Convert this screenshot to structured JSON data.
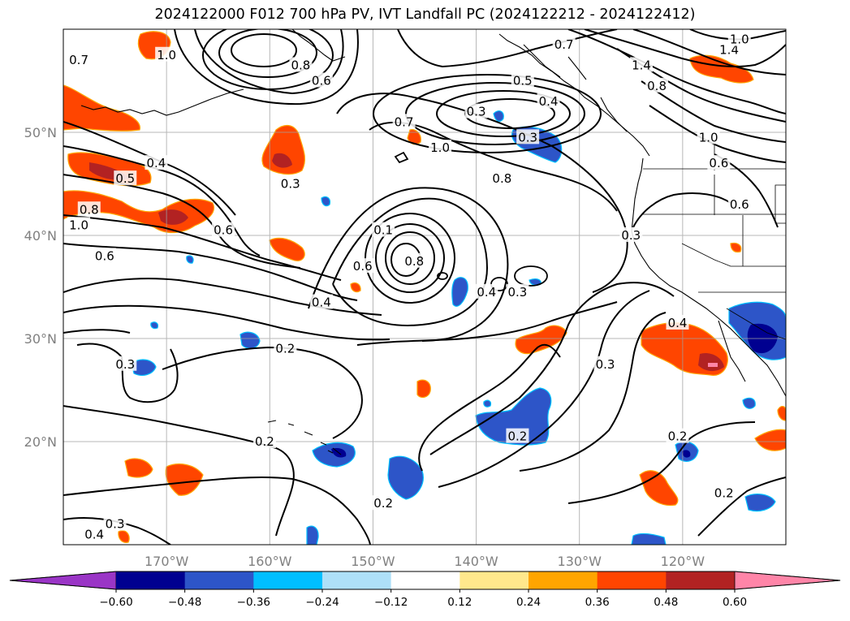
{
  "title": "2024122000 F012 700 hPa PV, IVT Landfall PC (2024122212 - 2024122412)",
  "map": {
    "lon_range": [
      -180,
      -110
    ],
    "lat_range": [
      10,
      60
    ],
    "lat_ticks": [
      {
        "value": 20,
        "label": "20°N"
      },
      {
        "value": 30,
        "label": "30°N"
      },
      {
        "value": 40,
        "label": "40°N"
      },
      {
        "value": 50,
        "label": "50°N"
      }
    ],
    "lon_ticks": [
      {
        "value": -170,
        "label": "170°W"
      },
      {
        "value": -160,
        "label": "160°W"
      },
      {
        "value": -150,
        "label": "150°W"
      },
      {
        "value": -140,
        "label": "140°W"
      },
      {
        "value": -130,
        "label": "130°W"
      },
      {
        "value": -120,
        "label": "120°W"
      }
    ],
    "gridlines": true,
    "contour_field": "700 hPa PV",
    "shaded_field": "IVT Landfall PC",
    "contour_labels": [
      {
        "text": "0.7",
        "lon": -178.5,
        "lat": 57.0
      },
      {
        "text": "1.0",
        "lon": -170.0,
        "lat": 57.5
      },
      {
        "text": "0.8",
        "lon": -157.0,
        "lat": 56.5
      },
      {
        "text": "0.6",
        "lon": -155.0,
        "lat": 55.0
      },
      {
        "text": "0.4",
        "lon": -171.0,
        "lat": 47.0
      },
      {
        "text": "0.5",
        "lon": -174.0,
        "lat": 45.5
      },
      {
        "text": "0.8",
        "lon": -177.5,
        "lat": 42.5
      },
      {
        "text": "1.0",
        "lon": -178.5,
        "lat": 41.0
      },
      {
        "text": "0.6",
        "lon": -164.5,
        "lat": 40.5
      },
      {
        "text": "0.3",
        "lon": -158.0,
        "lat": 45.0
      },
      {
        "text": "0.6",
        "lon": -176.0,
        "lat": 38.0
      },
      {
        "text": "0.5",
        "lon": -135.5,
        "lat": 55.0
      },
      {
        "text": "0.3",
        "lon": -140.0,
        "lat": 52.0
      },
      {
        "text": "0.7",
        "lon": -147.0,
        "lat": 51.0
      },
      {
        "text": "1.0",
        "lon": -143.5,
        "lat": 48.5
      },
      {
        "text": "0.8",
        "lon": -137.5,
        "lat": 45.5
      },
      {
        "text": "0.4",
        "lon": -133.0,
        "lat": 53.0
      },
      {
        "text": "0.3",
        "lon": -135.0,
        "lat": 49.5
      },
      {
        "text": "0.7",
        "lon": -131.5,
        "lat": 58.5
      },
      {
        "text": "1.4",
        "lon": -124.0,
        "lat": 56.5
      },
      {
        "text": "0.8",
        "lon": -122.5,
        "lat": 54.5
      },
      {
        "text": "1.0",
        "lon": -117.5,
        "lat": 49.5
      },
      {
        "text": "1.4",
        "lon": -115.5,
        "lat": 58.0
      },
      {
        "text": "1.0",
        "lon": -114.5,
        "lat": 59.0
      },
      {
        "text": "0.6",
        "lon": -116.5,
        "lat": 47.0
      },
      {
        "text": "0.6",
        "lon": -114.5,
        "lat": 43.0
      },
      {
        "text": "0.3",
        "lon": -125.0,
        "lat": 40.0
      },
      {
        "text": "0.1",
        "lon": -149.0,
        "lat": 40.5
      },
      {
        "text": "0.6",
        "lon": -151.0,
        "lat": 37.0
      },
      {
        "text": "0.8",
        "lon": -146.0,
        "lat": 37.5
      },
      {
        "text": "0.4",
        "lon": -139.0,
        "lat": 34.5
      },
      {
        "text": "0.3",
        "lon": -136.0,
        "lat": 34.5
      },
      {
        "text": "0.4",
        "lon": -155.0,
        "lat": 33.5
      },
      {
        "text": "0.2",
        "lon": -158.5,
        "lat": 29.0
      },
      {
        "text": "0.3",
        "lon": -174.0,
        "lat": 27.5
      },
      {
        "text": "0.4",
        "lon": -120.5,
        "lat": 31.5
      },
      {
        "text": "0.3",
        "lon": -127.5,
        "lat": 27.5
      },
      {
        "text": "0.2",
        "lon": -136.0,
        "lat": 20.5
      },
      {
        "text": "0.2",
        "lon": -160.5,
        "lat": 20.0
      },
      {
        "text": "0.2",
        "lon": -149.0,
        "lat": 14.0
      },
      {
        "text": "0.2",
        "lon": -120.5,
        "lat": 20.5
      },
      {
        "text": "0.2",
        "lon": -116.0,
        "lat": 15.0
      },
      {
        "text": "0.3",
        "lon": -175.0,
        "lat": 12.0
      },
      {
        "text": "0.4",
        "lon": -177.0,
        "lat": 11.0
      }
    ]
  },
  "colorbar": {
    "levels": [
      -0.72,
      -0.6,
      -0.48,
      -0.36,
      -0.24,
      -0.12,
      0.12,
      0.24,
      0.36,
      0.48,
      0.6,
      0.72
    ],
    "tick_labels": [
      "−0.60",
      "−0.48",
      "−0.36",
      "−0.24",
      "−0.12",
      "0.12",
      "0.24",
      "0.36",
      "0.48",
      "0.60"
    ],
    "colors": [
      "#9a35c6",
      "#000090",
      "#2d55c8",
      "#00bfff",
      "#aee0f8",
      "#ffffff",
      "#ffe88c",
      "#ffa500",
      "#ff4500",
      "#b22222",
      "#ff85a8"
    ]
  }
}
